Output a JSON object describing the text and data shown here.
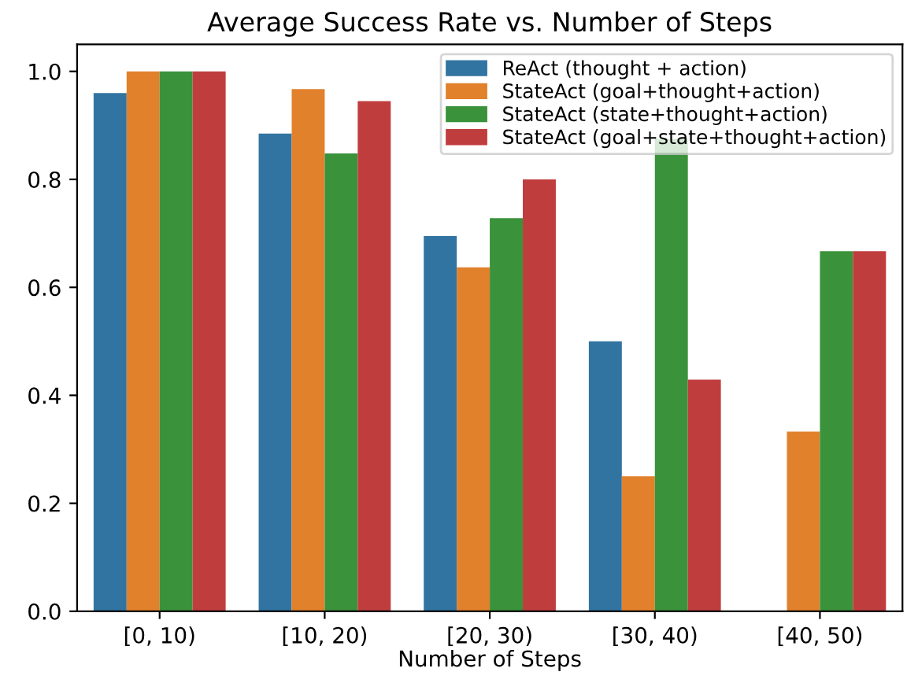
{
  "chart_data": {
    "type": "bar",
    "title": "Average Success Rate vs. Number of Steps",
    "xlabel": "Number of Steps",
    "categories": [
      "[0, 10)",
      "[10, 20)",
      "[20, 30)",
      "[30, 40)",
      "[40, 50)"
    ],
    "series": [
      {
        "name": "ReAct (thought + action)",
        "color": "#3274a1",
        "values": [
          0.96,
          0.885,
          0.695,
          0.5,
          null
        ]
      },
      {
        "name": "StateAct (goal+thought+action)",
        "color": "#e1812c",
        "values": [
          1.0,
          0.967,
          0.637,
          0.25,
          0.333
        ]
      },
      {
        "name": "StateAct (state+thought+action)",
        "color": "#3a923a",
        "values": [
          1.0,
          0.848,
          0.728,
          0.875,
          0.667
        ]
      },
      {
        "name": "StateAct (goal+state+thought+action)",
        "color": "#c03d3e",
        "values": [
          1.0,
          0.945,
          0.8,
          0.429,
          0.667
        ]
      }
    ],
    "ylim": [
      0,
      1.05
    ],
    "yticks": [
      {
        "value": 0,
        "label": "0.0"
      },
      {
        "value": 0.2,
        "label": "0.2"
      },
      {
        "value": 0.4,
        "label": "0.4"
      },
      {
        "value": 0.6,
        "label": "0.6"
      },
      {
        "value": 0.8,
        "label": "0.8"
      },
      {
        "value": 1.0,
        "label": "1.0"
      }
    ],
    "legend": "top right",
    "grid": false
  }
}
